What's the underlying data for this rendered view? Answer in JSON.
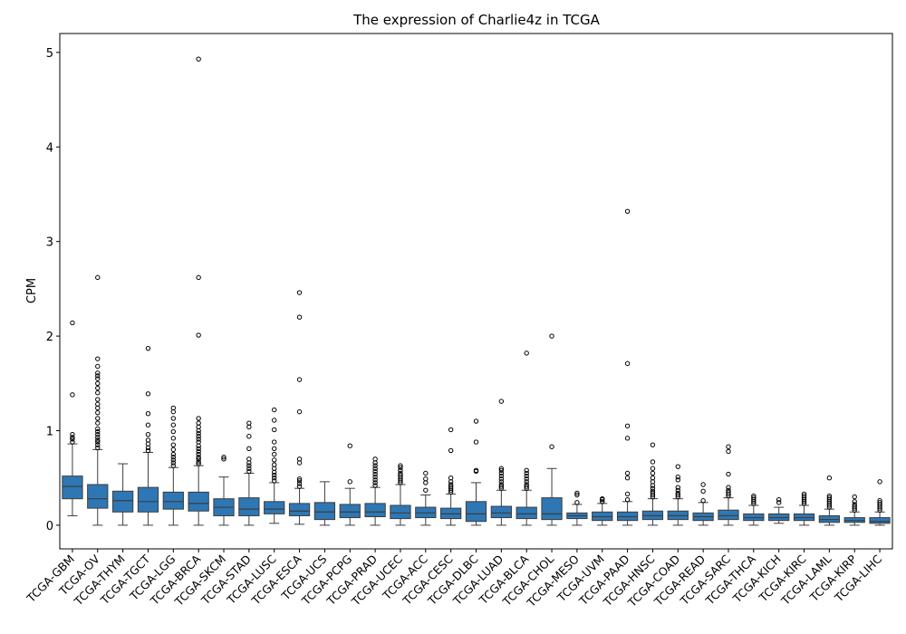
{
  "chart_data": {
    "type": "boxplot",
    "title": "The expression of Charlie4z in TCGA",
    "ylabel": "CPM",
    "xlabel": "",
    "ylim": [
      -0.25,
      5.2
    ],
    "yticks": [
      0,
      1,
      2,
      3,
      4,
      5
    ],
    "grid": false,
    "colors": {
      "box": "#2e77b4",
      "line": "#3d3d3d",
      "outlier": "#000000"
    },
    "categories": [
      "TCGA-GBM",
      "TCGA-OV",
      "TCGA-THYM",
      "TCGA-TGCT",
      "TCGA-LGG",
      "TCGA-BRCA",
      "TCGA-SKCM",
      "TCGA-STAD",
      "TCGA-LUSC",
      "TCGA-ESCA",
      "TCGA-UCS",
      "TCGA-PCPG",
      "TCGA-PRAD",
      "TCGA-UCEC",
      "TCGA-ACC",
      "TCGA-CESC",
      "TCGA-DLBC",
      "TCGA-LUAD",
      "TCGA-BLCA",
      "TCGA-CHOL",
      "TCGA-MESO",
      "TCGA-UVM",
      "TCGA-PAAD",
      "TCGA-HNSC",
      "TCGA-COAD",
      "TCGA-READ",
      "TCGA-SARC",
      "TCGA-THCA",
      "TCGA-KICH",
      "TCGA-KIRC",
      "TCGA-LAML",
      "TCGA-KIRP",
      "TCGA-LIHC"
    ],
    "boxes": [
      {
        "whislo": 0.1,
        "q1": 0.28,
        "med": 0.41,
        "q3": 0.52,
        "whishi": 0.86,
        "fliers": [
          0.88,
          0.91,
          0.93,
          0.96,
          1.38,
          2.14
        ]
      },
      {
        "whislo": 0.0,
        "q1": 0.18,
        "med": 0.28,
        "q3": 0.43,
        "whishi": 0.8,
        "fliers": [
          0.82,
          0.85,
          0.88,
          0.9,
          0.93,
          0.96,
          0.99,
          1.02,
          1.08,
          1.13,
          1.19,
          1.24,
          1.28,
          1.33,
          1.4,
          1.45,
          1.5,
          1.55,
          1.58,
          1.61,
          1.68,
          1.76,
          2.62
        ]
      },
      {
        "whislo": 0.0,
        "q1": 0.14,
        "med": 0.26,
        "q3": 0.36,
        "whishi": 0.65,
        "fliers": []
      },
      {
        "whislo": 0.0,
        "q1": 0.14,
        "med": 0.25,
        "q3": 0.4,
        "whishi": 0.77,
        "fliers": [
          0.79,
          0.82,
          0.86,
          0.9,
          0.96,
          1.06,
          1.18,
          1.39,
          1.87
        ]
      },
      {
        "whislo": 0.0,
        "q1": 0.17,
        "med": 0.25,
        "q3": 0.35,
        "whishi": 0.61,
        "fliers": [
          0.63,
          0.66,
          0.69,
          0.72,
          0.75,
          0.8,
          0.85,
          0.92,
          0.99,
          1.06,
          1.13,
          1.2,
          1.24
        ]
      },
      {
        "whislo": 0.0,
        "q1": 0.15,
        "med": 0.23,
        "q3": 0.35,
        "whishi": 0.63,
        "fliers": [
          0.65,
          0.67,
          0.7,
          0.72,
          0.75,
          0.78,
          0.81,
          0.84,
          0.88,
          0.91,
          0.94,
          0.97,
          1.0,
          1.04,
          1.08,
          1.13,
          2.01,
          2.62,
          4.93
        ]
      },
      {
        "whislo": 0.0,
        "q1": 0.1,
        "med": 0.19,
        "q3": 0.28,
        "whishi": 0.51,
        "fliers": [
          0.7,
          0.72
        ]
      },
      {
        "whislo": 0.0,
        "q1": 0.1,
        "med": 0.17,
        "q3": 0.29,
        "whishi": 0.55,
        "fliers": [
          0.57,
          0.6,
          0.63,
          0.66,
          0.7,
          0.81,
          0.94,
          1.04,
          1.08
        ]
      },
      {
        "whislo": 0.02,
        "q1": 0.12,
        "med": 0.17,
        "q3": 0.25,
        "whishi": 0.45,
        "fliers": [
          0.47,
          0.5,
          0.53,
          0.56,
          0.6,
          0.64,
          0.69,
          0.75,
          0.81,
          0.88,
          1.01,
          1.11,
          1.22
        ]
      },
      {
        "whislo": 0.01,
        "q1": 0.1,
        "med": 0.15,
        "q3": 0.23,
        "whishi": 0.39,
        "fliers": [
          0.41,
          0.44,
          0.47,
          0.49,
          0.66,
          0.7,
          1.2,
          1.54,
          2.2,
          2.46
        ]
      },
      {
        "whislo": 0.0,
        "q1": 0.06,
        "med": 0.14,
        "q3": 0.24,
        "whishi": 0.46,
        "fliers": []
      },
      {
        "whislo": 0.0,
        "q1": 0.08,
        "med": 0.14,
        "q3": 0.22,
        "whishi": 0.39,
        "fliers": [
          0.46,
          0.84
        ]
      },
      {
        "whislo": 0.0,
        "q1": 0.09,
        "med": 0.14,
        "q3": 0.23,
        "whishi": 0.4,
        "fliers": [
          0.42,
          0.45,
          0.48,
          0.51,
          0.54,
          0.57,
          0.6,
          0.63,
          0.66,
          0.7
        ]
      },
      {
        "whislo": 0.0,
        "q1": 0.07,
        "med": 0.13,
        "q3": 0.21,
        "whishi": 0.43,
        "fliers": [
          0.45,
          0.47,
          0.49,
          0.51,
          0.53,
          0.55,
          0.58,
          0.61,
          0.63
        ]
      },
      {
        "whislo": 0.0,
        "q1": 0.08,
        "med": 0.13,
        "q3": 0.19,
        "whishi": 0.32,
        "fliers": [
          0.37,
          0.45,
          0.49,
          0.55
        ]
      },
      {
        "whislo": 0.0,
        "q1": 0.07,
        "med": 0.12,
        "q3": 0.18,
        "whishi": 0.33,
        "fliers": [
          0.35,
          0.37,
          0.39,
          0.41,
          0.43,
          0.46,
          0.5,
          0.79,
          1.01
        ]
      },
      {
        "whislo": 0.0,
        "q1": 0.04,
        "med": 0.12,
        "q3": 0.25,
        "whishi": 0.45,
        "fliers": [
          0.57,
          0.58,
          0.88,
          1.1
        ]
      },
      {
        "whislo": 0.0,
        "q1": 0.08,
        "med": 0.13,
        "q3": 0.2,
        "whishi": 0.37,
        "fliers": [
          0.39,
          0.41,
          0.43,
          0.46,
          0.49,
          0.52,
          0.55,
          0.58,
          0.6,
          1.31
        ]
      },
      {
        "whislo": 0.0,
        "q1": 0.07,
        "med": 0.12,
        "q3": 0.19,
        "whishi": 0.37,
        "fliers": [
          0.39,
          0.41,
          0.43,
          0.46,
          0.49,
          0.52,
          0.55,
          0.58,
          1.82
        ]
      },
      {
        "whislo": 0.0,
        "q1": 0.06,
        "med": 0.12,
        "q3": 0.29,
        "whishi": 0.6,
        "fliers": [
          0.83,
          2.0
        ]
      },
      {
        "whislo": 0.0,
        "q1": 0.07,
        "med": 0.1,
        "q3": 0.13,
        "whishi": 0.22,
        "fliers": [
          0.24,
          0.32,
          0.34
        ]
      },
      {
        "whislo": 0.0,
        "q1": 0.05,
        "med": 0.09,
        "q3": 0.14,
        "whishi": 0.23,
        "fliers": [
          0.25,
          0.27,
          0.28
        ]
      },
      {
        "whislo": 0.0,
        "q1": 0.05,
        "med": 0.09,
        "q3": 0.14,
        "whishi": 0.25,
        "fliers": [
          0.27,
          0.33,
          0.5,
          0.55,
          0.92,
          1.05,
          1.71,
          3.32
        ]
      },
      {
        "whislo": 0.0,
        "q1": 0.06,
        "med": 0.1,
        "q3": 0.15,
        "whishi": 0.28,
        "fliers": [
          0.3,
          0.32,
          0.34,
          0.36,
          0.39,
          0.42,
          0.46,
          0.5,
          0.55,
          0.6,
          0.67,
          0.85
        ]
      },
      {
        "whislo": 0.0,
        "q1": 0.06,
        "med": 0.1,
        "q3": 0.15,
        "whishi": 0.28,
        "fliers": [
          0.3,
          0.32,
          0.34,
          0.37,
          0.4,
          0.48,
          0.51,
          0.62
        ]
      },
      {
        "whislo": 0.0,
        "q1": 0.05,
        "med": 0.09,
        "q3": 0.13,
        "whishi": 0.24,
        "fliers": [
          0.26,
          0.36,
          0.43
        ]
      },
      {
        "whislo": 0.0,
        "q1": 0.06,
        "med": 0.1,
        "q3": 0.16,
        "whishi": 0.29,
        "fliers": [
          0.31,
          0.33,
          0.35,
          0.37,
          0.4,
          0.54,
          0.78,
          0.83
        ]
      },
      {
        "whislo": 0.0,
        "q1": 0.05,
        "med": 0.08,
        "q3": 0.12,
        "whishi": 0.21,
        "fliers": [
          0.23,
          0.25,
          0.27,
          0.29,
          0.31
        ]
      },
      {
        "whislo": 0.02,
        "q1": 0.05,
        "med": 0.08,
        "q3": 0.12,
        "whishi": 0.19,
        "fliers": [
          0.24,
          0.27
        ]
      },
      {
        "whislo": 0.0,
        "q1": 0.05,
        "med": 0.08,
        "q3": 0.12,
        "whishi": 0.21,
        "fliers": [
          0.23,
          0.25,
          0.27,
          0.29,
          0.31,
          0.33
        ]
      },
      {
        "whislo": 0.0,
        "q1": 0.03,
        "med": 0.06,
        "q3": 0.1,
        "whishi": 0.17,
        "fliers": [
          0.19,
          0.21,
          0.23,
          0.25,
          0.27,
          0.29,
          0.31,
          0.5
        ]
      },
      {
        "whislo": 0.0,
        "q1": 0.03,
        "med": 0.05,
        "q3": 0.08,
        "whishi": 0.14,
        "fliers": [
          0.16,
          0.18,
          0.2,
          0.22,
          0.25,
          0.3
        ]
      },
      {
        "whislo": 0.0,
        "q1": 0.02,
        "med": 0.04,
        "q3": 0.08,
        "whishi": 0.14,
        "fliers": [
          0.16,
          0.18,
          0.2,
          0.22,
          0.24,
          0.26,
          0.46
        ]
      }
    ]
  }
}
